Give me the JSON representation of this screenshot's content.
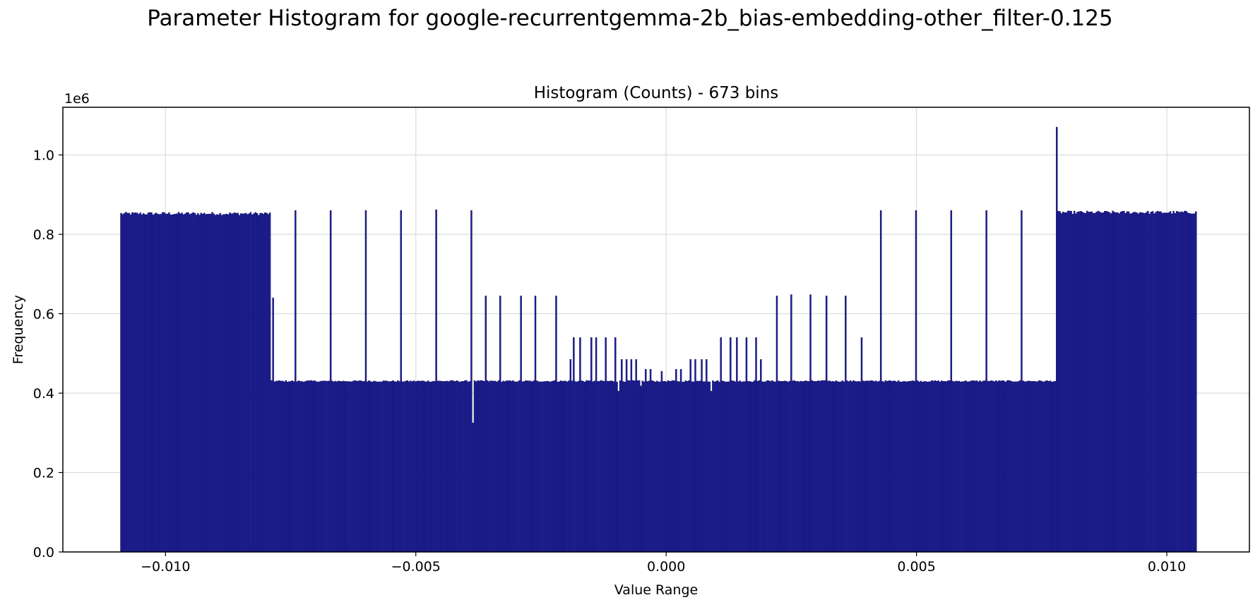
{
  "figure": {
    "suptitle": "Parameter Histogram for google-recurrentgemma-2b_bias-embedding-other_filter-0.125"
  },
  "chart_data": {
    "type": "bar",
    "title": "Histogram (Counts) - 673 bins",
    "xlabel": "Value Range",
    "ylabel": "Frequency",
    "y_offset_label": "1e6",
    "bins": 673,
    "x_range": [
      -0.0109,
      0.0106
    ],
    "xlim": [
      -0.01205,
      0.01165
    ],
    "ylim": [
      0,
      1.12
    ],
    "y_unit": 1000000,
    "xticks": [
      -0.01,
      -0.005,
      0.0,
      0.005,
      0.01
    ],
    "xtick_labels": [
      "−0.010",
      "−0.005",
      "0.000",
      "0.005",
      "0.010"
    ],
    "yticks": [
      0.0,
      0.2,
      0.4,
      0.6,
      0.8,
      1.0
    ],
    "ytick_labels": [
      "0.0",
      "0.2",
      "0.4",
      "0.6",
      "0.8",
      "1.0"
    ],
    "grid": true,
    "bar_fill": "#1f1f9e",
    "bar_edge": "#0d0d5c",
    "baseline_left": 0.852,
    "baseline_middle": 0.43,
    "baseline_right": 0.855,
    "left_block_end": -0.0079,
    "right_block_start": 0.0078,
    "edge_spike": {
      "x": -0.00785,
      "y": 0.64
    },
    "peak": {
      "x": 0.00782,
      "y": 1.07
    },
    "spikes": [
      {
        "x": -0.0074,
        "y": 0.86
      },
      {
        "x": -0.0067,
        "y": 0.86
      },
      {
        "x": -0.006,
        "y": 0.86
      },
      {
        "x": -0.0053,
        "y": 0.86
      },
      {
        "x": -0.0046,
        "y": 0.862
      },
      {
        "x": -0.0039,
        "y": 0.86
      },
      {
        "x": 0.0043,
        "y": 0.86
      },
      {
        "x": 0.005,
        "y": 0.86
      },
      {
        "x": 0.0057,
        "y": 0.86
      },
      {
        "x": 0.0064,
        "y": 0.86
      },
      {
        "x": 0.0071,
        "y": 0.86
      },
      {
        "x": -0.0036,
        "y": 0.645
      },
      {
        "x": -0.0033,
        "y": 0.645
      },
      {
        "x": -0.0029,
        "y": 0.645
      },
      {
        "x": -0.0026,
        "y": 0.645
      },
      {
        "x": -0.0022,
        "y": 0.645
      },
      {
        "x": 0.0022,
        "y": 0.645
      },
      {
        "x": 0.0025,
        "y": 0.648
      },
      {
        "x": 0.0029,
        "y": 0.648
      },
      {
        "x": 0.0032,
        "y": 0.645
      },
      {
        "x": 0.0036,
        "y": 0.645
      },
      {
        "x": -0.0019,
        "y": 0.485
      },
      {
        "x": -0.00185,
        "y": 0.54
      },
      {
        "x": -0.0017,
        "y": 0.54
      },
      {
        "x": -0.0015,
        "y": 0.54
      },
      {
        "x": -0.0014,
        "y": 0.54
      },
      {
        "x": -0.0012,
        "y": 0.54
      },
      {
        "x": -0.001,
        "y": 0.54
      },
      {
        "x": 0.0011,
        "y": 0.54
      },
      {
        "x": 0.0013,
        "y": 0.54
      },
      {
        "x": 0.0014,
        "y": 0.54
      },
      {
        "x": 0.0016,
        "y": 0.54
      },
      {
        "x": 0.0018,
        "y": 0.54
      },
      {
        "x": 0.0019,
        "y": 0.485
      },
      {
        "x": 0.0039,
        "y": 0.54
      },
      {
        "x": -0.0009,
        "y": 0.485
      },
      {
        "x": -0.0008,
        "y": 0.485
      },
      {
        "x": -0.0007,
        "y": 0.485
      },
      {
        "x": -0.0006,
        "y": 0.485
      },
      {
        "x": -0.0005,
        "y": 0.485
      },
      {
        "x": 0.0005,
        "y": 0.485
      },
      {
        "x": 0.0006,
        "y": 0.485
      },
      {
        "x": 0.0007,
        "y": 0.485
      },
      {
        "x": 0.0008,
        "y": 0.485
      },
      {
        "x": 0.0009,
        "y": 0.485
      },
      {
        "x": -0.0004,
        "y": 0.46
      },
      {
        "x": -0.0003,
        "y": 0.46
      },
      {
        "x": -0.0001,
        "y": 0.455
      },
      {
        "x": 0.0002,
        "y": 0.46
      },
      {
        "x": 0.0003,
        "y": 0.46
      }
    ],
    "dips": [
      {
        "x": -0.00385,
        "y": 0.325
      },
      {
        "x": -0.00095,
        "y": 0.405
      },
      {
        "x": -0.0005,
        "y": 0.418
      },
      {
        "x": 0.0009,
        "y": 0.405
      }
    ]
  }
}
